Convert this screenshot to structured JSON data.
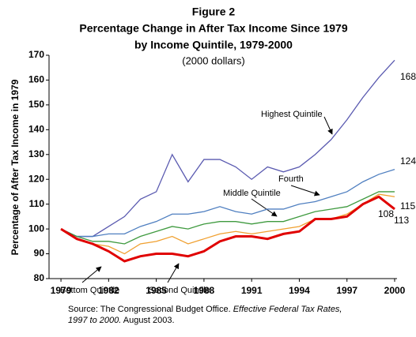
{
  "chart_data": {
    "type": "line",
    "title": [
      "Figure 2",
      "Percentage Change in After Tax Income Since 1979",
      "by Income Quintile, 1979-2000"
    ],
    "subtitle": "(2000 dollars)",
    "y_label": "Percentage of After Tax Income in 1979",
    "source": [
      "Source: The Congressional Budget Office. ",
      "Effective Federal Tax Rates,",
      "1997 to 2000.",
      "  August 2003."
    ],
    "x": [
      1979,
      1980,
      1981,
      1982,
      1983,
      1984,
      1985,
      1986,
      1987,
      1988,
      1989,
      1990,
      1991,
      1992,
      1993,
      1994,
      1995,
      1996,
      1997,
      1998,
      1999,
      2000
    ],
    "xlim": [
      1978.25,
      2000
    ],
    "xticks": [
      1979,
      1982,
      1985,
      1988,
      1991,
      1994,
      1997,
      2000
    ],
    "ylim": [
      80,
      170
    ],
    "yticks": [
      80,
      90,
      100,
      110,
      120,
      130,
      140,
      150,
      160,
      170
    ],
    "grid": false,
    "series": [
      {
        "name": "Highest Quintile",
        "color": "#5a5ab0",
        "values": [
          100,
          97,
          97,
          101,
          105,
          112,
          115,
          130,
          119,
          128,
          128,
          125,
          120,
          125,
          123,
          125,
          130,
          136,
          144,
          153,
          161,
          168
        ]
      },
      {
        "name": "Fourth",
        "color": "#4f7fc0",
        "values": [
          100,
          97,
          97,
          98,
          98,
          101,
          103,
          106,
          106,
          107,
          109,
          107,
          106,
          108,
          108,
          110,
          111,
          113,
          115,
          119,
          122,
          124
        ]
      },
      {
        "name": "Middle Quintile",
        "color": "#3f9a3f",
        "values": [
          100,
          97,
          95,
          95,
          94,
          97,
          99,
          101,
          100,
          102,
          103,
          103,
          102,
          103,
          103,
          105,
          107,
          108,
          109,
          112,
          115,
          115
        ]
      },
      {
        "name": "Second Quintile",
        "color": "#f0a030",
        "values": [
          100,
          96,
          94,
          93,
          90,
          94,
          95,
          97,
          94,
          96,
          98,
          99,
          98,
          99,
          100,
          101,
          104,
          104,
          106,
          110,
          114,
          113
        ]
      },
      {
        "name": "Bottom Quintile",
        "color": "#e00000",
        "values": [
          100,
          96,
          94,
          91,
          87,
          89,
          90,
          90,
          89,
          91,
          95,
          97,
          97,
          96,
          98,
          99,
          104,
          104,
          105,
          110,
          113,
          108
        ]
      }
    ]
  }
}
